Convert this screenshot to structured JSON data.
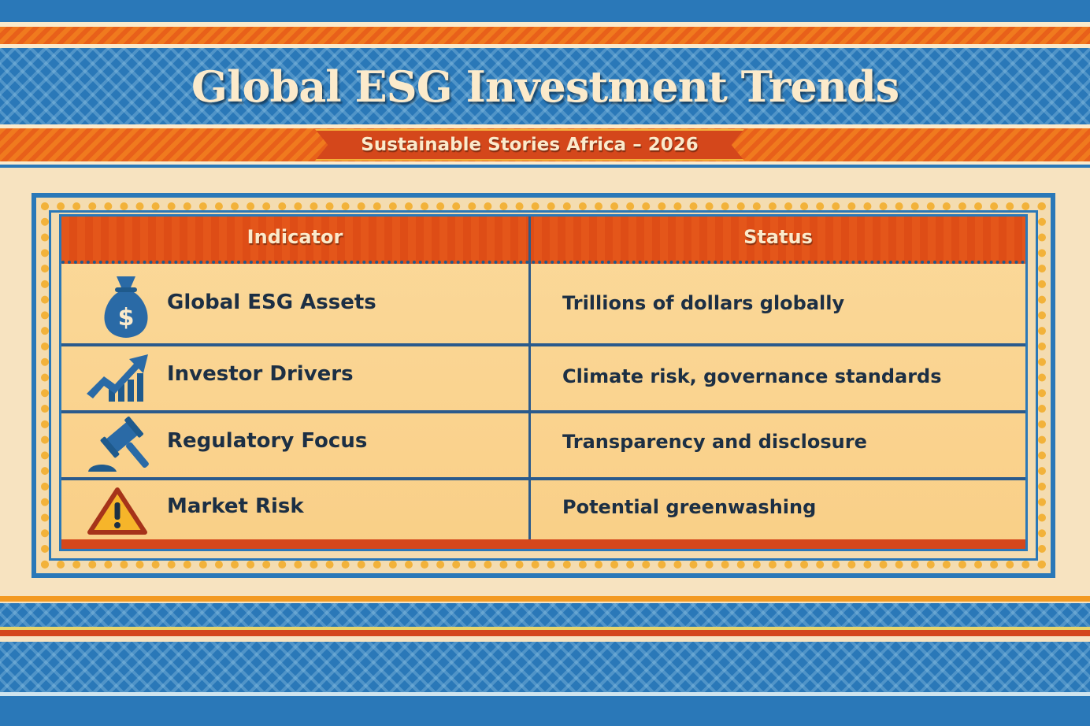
{
  "header": {
    "title": "Global ESG Investment Trends",
    "subtitle": "Sustainable Stories Africa – 2026"
  },
  "table": {
    "columns": [
      "Indicator",
      "Status"
    ],
    "rows": [
      {
        "icon": "money-bag-icon",
        "indicator": "Global ESG Assets",
        "status": "Trillions of dollars globally"
      },
      {
        "icon": "growth-chart-icon",
        "indicator": "Investor Drivers",
        "status": "Climate risk, governance standards"
      },
      {
        "icon": "gavel-icon",
        "indicator": "Regulatory Focus",
        "status": "Transparency and disclosure"
      },
      {
        "icon": "warning-icon",
        "indicator": "Market Risk",
        "status": "Potential greenwashing"
      }
    ]
  },
  "colors": {
    "blue": "#2a78b8",
    "orange": "#e8601a",
    "red": "#d4471b",
    "cream": "#fbeacb",
    "text": "#1c2f44"
  }
}
